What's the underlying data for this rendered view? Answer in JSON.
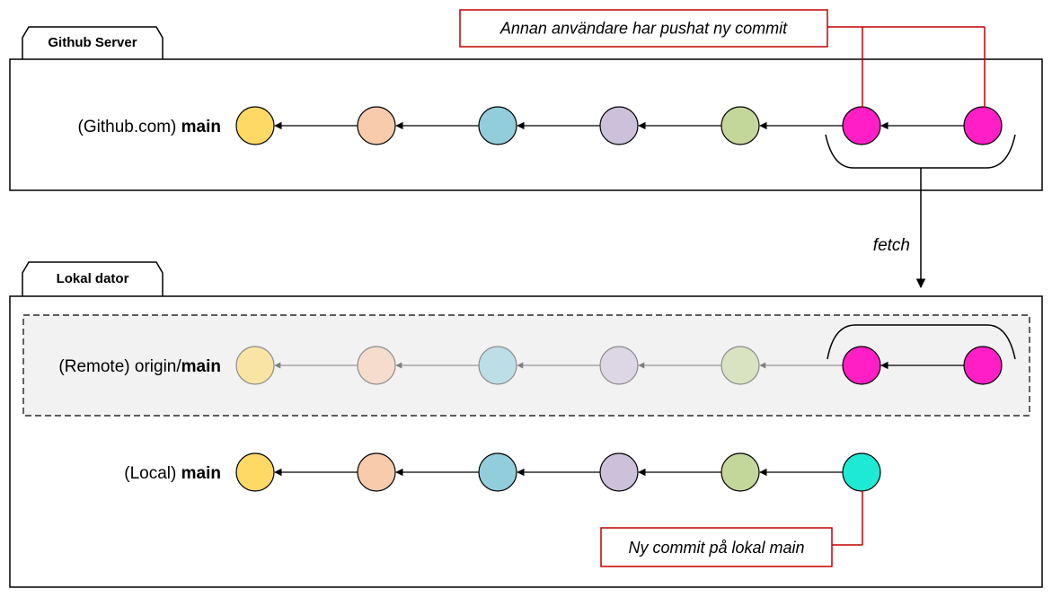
{
  "server": {
    "tab": "Github Server",
    "branch": {
      "prefix": "(Github.com) ",
      "bold": "main"
    }
  },
  "local": {
    "tab": "Lokal dator",
    "remote_branch": {
      "prefix": "(Remote) origin/",
      "bold": "main"
    },
    "local_branch": {
      "prefix": "(Local) ",
      "bold": "main"
    }
  },
  "fetch_label": "fetch",
  "callout_top": "Annan användare har pushat ny commit",
  "callout_bottom": "Ny commit på lokal main",
  "commit_colors": [
    "#FFD966",
    "#F8CBAD",
    "#92CDDC",
    "#CCC0DA",
    "#C4D79B"
  ],
  "pushed_color": "#FF1FC4",
  "new_local_color": "#1DE9D4",
  "callout_color": "#C00000"
}
